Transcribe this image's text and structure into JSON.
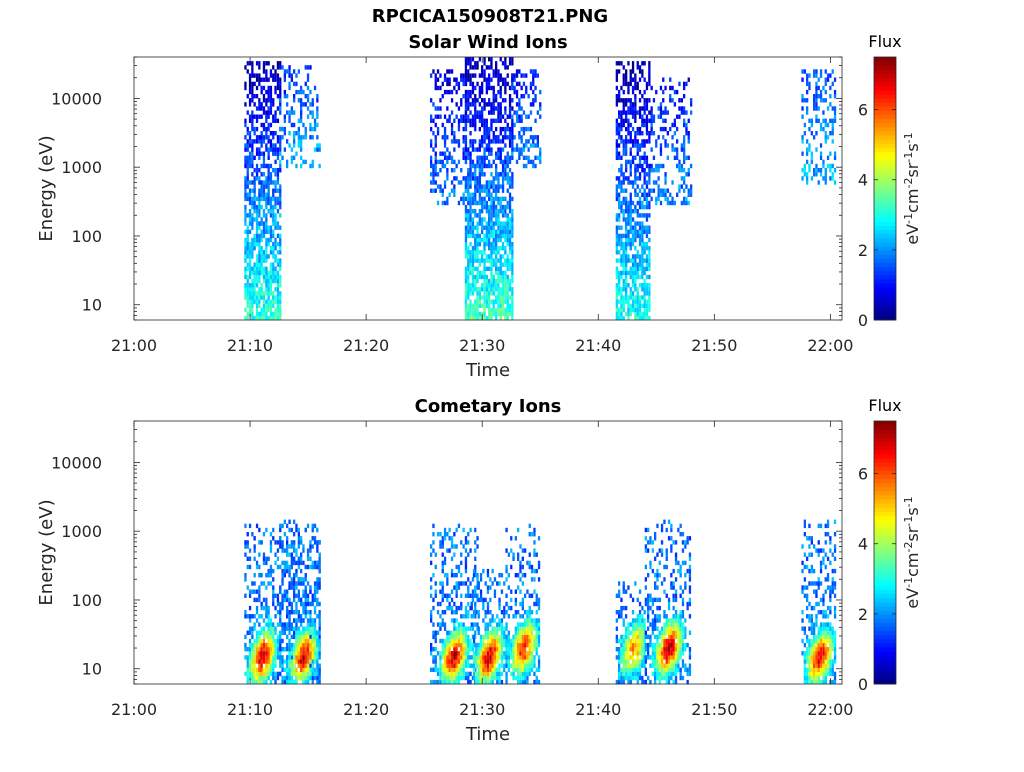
{
  "figure": {
    "title": "RPCICA150908T21.PNG"
  },
  "chart_data": [
    {
      "type": "heatmap",
      "title": "Solar Wind Ions",
      "xlabel": "Time",
      "ylabel": "Energy (eV)",
      "x_ticks": [
        "21:00",
        "21:10",
        "21:20",
        "21:30",
        "21:40",
        "21:50",
        "22:00"
      ],
      "xlim_minutes": [
        0,
        61
      ],
      "y_scale": "log",
      "ylim": [
        6,
        40000
      ],
      "y_ticks": [
        {
          "value": 10,
          "label": "10"
        },
        {
          "value": 100,
          "label": "100"
        },
        {
          "value": 1000,
          "label": "1000"
        },
        {
          "value": 10000,
          "label": "10000"
        }
      ],
      "colorbar": {
        "label": "Flux",
        "unit": "eV-1cm-2sr-1s-1",
        "min": 0,
        "max": 7.5,
        "ticks": [
          0,
          2,
          4,
          6
        ],
        "colormap": "jet"
      },
      "bursts": [
        {
          "start_min": 9.5,
          "end_min": 12.5,
          "emin": 6,
          "emax": 35000,
          "low_flux": 3.2,
          "high_flux": 0.3
        },
        {
          "start_min": 12.5,
          "end_min": 16,
          "emin": 1000,
          "emax": 30000,
          "low_flux": 2.2,
          "high_flux": 1.2,
          "sparse": true
        },
        {
          "start_min": 25.5,
          "end_min": 28.5,
          "emin": 300,
          "emax": 25000,
          "low_flux": 1.8,
          "high_flux": 0.8,
          "sparse": true
        },
        {
          "start_min": 28.5,
          "end_min": 32.5,
          "emin": 6,
          "emax": 40000,
          "low_flux": 3.3,
          "high_flux": 0.3
        },
        {
          "start_min": 32.5,
          "end_min": 35,
          "emin": 1000,
          "emax": 25000,
          "low_flux": 2.0,
          "high_flux": 1.0,
          "sparse": true
        },
        {
          "start_min": 41.5,
          "end_min": 44.5,
          "emin": 6,
          "emax": 35000,
          "low_flux": 3.0,
          "high_flux": 0.3
        },
        {
          "start_min": 44.5,
          "end_min": 48,
          "emin": 300,
          "emax": 20000,
          "low_flux": 2.0,
          "high_flux": 1.0,
          "sparse": true
        },
        {
          "start_min": 57.5,
          "end_min": 60.5,
          "emin": 600,
          "emax": 25000,
          "low_flux": 2.3,
          "high_flux": 1.5,
          "sparse": true
        }
      ]
    },
    {
      "type": "heatmap",
      "title": "Cometary Ions",
      "xlabel": "Time",
      "ylabel": "Energy (eV)",
      "x_ticks": [
        "21:00",
        "21:10",
        "21:20",
        "21:30",
        "21:40",
        "21:50",
        "22:00"
      ],
      "xlim_minutes": [
        0,
        61
      ],
      "y_scale": "log",
      "ylim": [
        6,
        40000
      ],
      "y_ticks": [
        {
          "value": 10,
          "label": "10"
        },
        {
          "value": 100,
          "label": "100"
        },
        {
          "value": 1000,
          "label": "1000"
        },
        {
          "value": 10000,
          "label": "10000"
        }
      ],
      "colorbar": {
        "label": "Flux",
        "unit": "eV-1cm-2sr-1s-1",
        "min": 0,
        "max": 7.5,
        "ticks": [
          0,
          2,
          4,
          6
        ],
        "colormap": "jet"
      },
      "bursts": [
        {
          "start_min": 9.5,
          "end_min": 16,
          "emin": 6,
          "emax": 1500,
          "peak_min": 11,
          "peak_flux": 7.0,
          "peak_e": 15
        },
        {
          "start_min": 12.5,
          "end_min": 16,
          "emin": 6,
          "emax": 1500,
          "peak_min": 14.5,
          "peak_flux": 6.8,
          "peak_e": 15
        },
        {
          "start_min": 25.5,
          "end_min": 29.5,
          "emin": 6,
          "emax": 1300,
          "peak_min": 27.5,
          "peak_flux": 7.0,
          "peak_e": 15
        },
        {
          "start_min": 29,
          "end_min": 32,
          "emin": 6,
          "emax": 300,
          "peak_min": 30.5,
          "peak_flux": 7.0,
          "peak_e": 15
        },
        {
          "start_min": 32,
          "end_min": 35,
          "emin": 6,
          "emax": 1300,
          "peak_min": 33.5,
          "peak_flux": 6.5,
          "peak_e": 20
        },
        {
          "start_min": 41.5,
          "end_min": 44,
          "emin": 6,
          "emax": 200,
          "peak_min": 43,
          "peak_flux": 5.5,
          "peak_e": 20
        },
        {
          "start_min": 44,
          "end_min": 48,
          "emin": 6,
          "emax": 1500,
          "peak_min": 46,
          "peak_flux": 7.2,
          "peak_e": 20
        },
        {
          "start_min": 57.5,
          "end_min": 60.5,
          "emin": 6,
          "emax": 1500,
          "peak_min": 59,
          "peak_flux": 6.8,
          "peak_e": 15
        }
      ]
    }
  ]
}
